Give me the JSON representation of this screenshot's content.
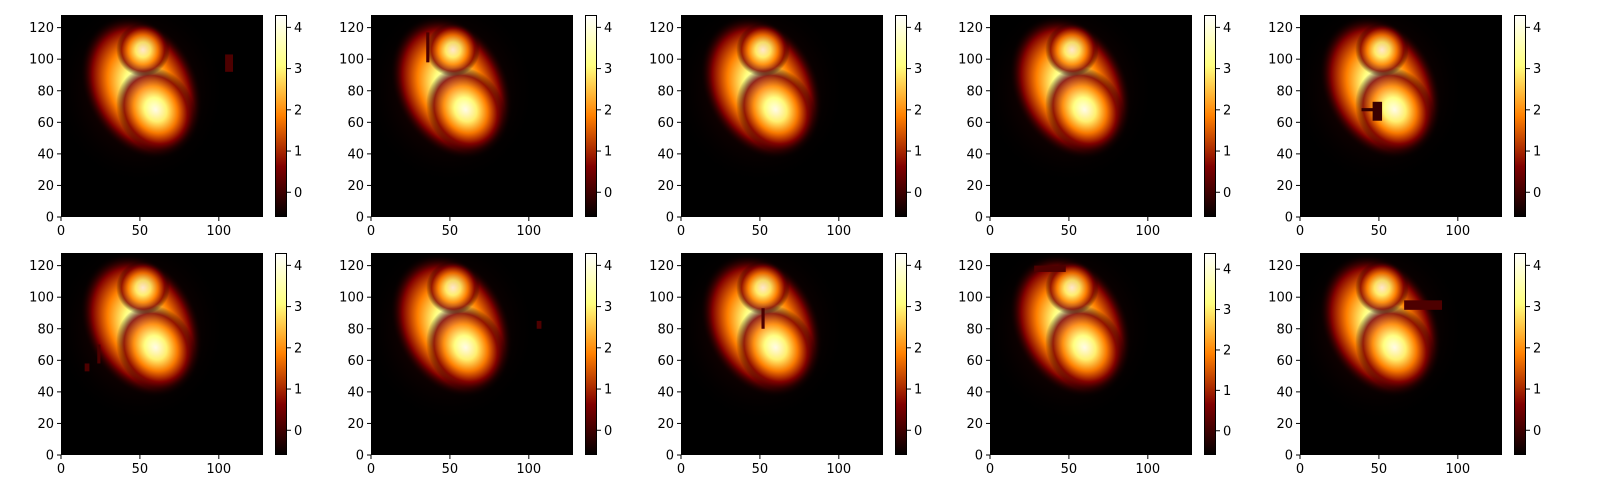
{
  "colormap": "afmhot",
  "colormap_colors": [
    "#000000",
    "#800000",
    "#ff8000",
    "#ffff80",
    "#ffffff"
  ],
  "chart_data": [
    {
      "type": "heatmap",
      "row": 1,
      "col": 1,
      "xlim": [
        0,
        128
      ],
      "ylim": [
        0,
        128
      ],
      "x_ticks": [
        "0",
        "50",
        "100"
      ],
      "y_ticks": [
        "0",
        "20",
        "40",
        "60",
        "80",
        "100",
        "120"
      ],
      "colorbar": {
        "range": [
          -0.6,
          4.3
        ],
        "ticks": [
          "0",
          "1",
          "2",
          "3",
          "4"
        ]
      },
      "masks": [
        {
          "x": [
            104,
            109
          ],
          "y": [
            92,
            103
          ],
          "value": 0.3
        }
      ]
    },
    {
      "type": "heatmap",
      "row": 1,
      "col": 2,
      "xlim": [
        0,
        128
      ],
      "ylim": [
        0,
        128
      ],
      "x_ticks": [
        "0",
        "50",
        "100"
      ],
      "y_ticks": [
        "0",
        "20",
        "40",
        "60",
        "80",
        "100",
        "120"
      ],
      "colorbar": {
        "range": [
          -0.6,
          4.3
        ],
        "ticks": [
          "0",
          "1",
          "2",
          "3",
          "4"
        ]
      },
      "masks": [
        {
          "x": [
            35,
            37
          ],
          "y": [
            98,
            117
          ],
          "value": 0.3
        }
      ]
    },
    {
      "type": "heatmap",
      "row": 1,
      "col": 3,
      "xlim": [
        0,
        128
      ],
      "ylim": [
        0,
        128
      ],
      "x_ticks": [
        "0",
        "50",
        "100"
      ],
      "y_ticks": [
        "0",
        "20",
        "40",
        "60",
        "80",
        "100",
        "120"
      ],
      "colorbar": {
        "range": [
          -0.6,
          4.3
        ],
        "ticks": [
          "0",
          "1",
          "2",
          "3",
          "4"
        ]
      },
      "masks": []
    },
    {
      "type": "heatmap",
      "row": 1,
      "col": 4,
      "xlim": [
        0,
        128
      ],
      "ylim": [
        0,
        128
      ],
      "x_ticks": [
        "0",
        "50",
        "100"
      ],
      "y_ticks": [
        "0",
        "20",
        "40",
        "60",
        "80",
        "100",
        "120"
      ],
      "colorbar": {
        "range": [
          -0.6,
          4.3
        ],
        "ticks": [
          "0",
          "1",
          "2",
          "3",
          "4"
        ]
      },
      "masks": []
    },
    {
      "type": "heatmap",
      "row": 1,
      "col": 5,
      "xlim": [
        0,
        128
      ],
      "ylim": [
        0,
        128
      ],
      "x_ticks": [
        "0",
        "50",
        "100"
      ],
      "y_ticks": [
        "0",
        "20",
        "40",
        "60",
        "80",
        "100",
        "120"
      ],
      "colorbar": {
        "range": [
          -0.6,
          4.3
        ],
        "ticks": [
          "0",
          "1",
          "2",
          "3",
          "4"
        ]
      },
      "masks": [
        {
          "x": [
            46,
            52
          ],
          "y": [
            61,
            73
          ],
          "value": 0.2
        },
        {
          "x": [
            39,
            50
          ],
          "y": [
            67,
            69
          ],
          "value": 0.2
        }
      ]
    },
    {
      "type": "heatmap",
      "row": 2,
      "col": 1,
      "xlim": [
        0,
        128
      ],
      "ylim": [
        0,
        128
      ],
      "x_ticks": [
        "0",
        "50",
        "100"
      ],
      "y_ticks": [
        "0",
        "20",
        "40",
        "60",
        "80",
        "100",
        "120"
      ],
      "colorbar": {
        "range": [
          -0.6,
          4.3
        ],
        "ticks": [
          "0",
          "1",
          "2",
          "3",
          "4"
        ]
      },
      "masks": [
        {
          "x": [
            15,
            18
          ],
          "y": [
            53,
            58
          ],
          "value": 0.3
        },
        {
          "x": [
            23,
            25
          ],
          "y": [
            58,
            70
          ],
          "value": 0.3
        }
      ]
    },
    {
      "type": "heatmap",
      "row": 2,
      "col": 2,
      "xlim": [
        0,
        128
      ],
      "ylim": [
        0,
        128
      ],
      "x_ticks": [
        "0",
        "50",
        "100"
      ],
      "y_ticks": [
        "0",
        "20",
        "40",
        "60",
        "80",
        "100",
        "120"
      ],
      "colorbar": {
        "range": [
          -0.6,
          4.3
        ],
        "ticks": [
          "0",
          "1",
          "2",
          "3",
          "4"
        ]
      },
      "masks": [
        {
          "x": [
            105,
            108
          ],
          "y": [
            80,
            85
          ],
          "value": 0.3
        }
      ]
    },
    {
      "type": "heatmap",
      "row": 2,
      "col": 3,
      "xlim": [
        0,
        128
      ],
      "ylim": [
        0,
        128
      ],
      "x_ticks": [
        "0",
        "50",
        "100"
      ],
      "y_ticks": [
        "0",
        "20",
        "40",
        "60",
        "80",
        "100",
        "120"
      ],
      "colorbar": {
        "range": [
          -0.6,
          4.3
        ],
        "ticks": [
          "0",
          "1",
          "2",
          "3",
          "4"
        ]
      },
      "masks": [
        {
          "x": [
            51,
            53
          ],
          "y": [
            80,
            93
          ],
          "value": 0.3
        }
      ]
    },
    {
      "type": "heatmap",
      "row": 2,
      "col": 4,
      "xlim": [
        0,
        128
      ],
      "ylim": [
        0,
        128
      ],
      "x_ticks": [
        "0",
        "50",
        "100"
      ],
      "y_ticks": [
        "0",
        "20",
        "40",
        "60",
        "80",
        "100",
        "120"
      ],
      "colorbar": {
        "range": [
          -0.6,
          4.4
        ],
        "ticks": [
          "0",
          "1",
          "2",
          "3",
          "4"
        ]
      },
      "masks": [
        {
          "x": [
            28,
            48
          ],
          "y": [
            116,
            120
          ],
          "value": 0.4
        }
      ]
    },
    {
      "type": "heatmap",
      "row": 2,
      "col": 5,
      "xlim": [
        0,
        128
      ],
      "ylim": [
        0,
        128
      ],
      "x_ticks": [
        "0",
        "50",
        "100"
      ],
      "y_ticks": [
        "0",
        "20",
        "40",
        "60",
        "80",
        "100",
        "120"
      ],
      "colorbar": {
        "range": [
          -0.6,
          4.3
        ],
        "ticks": [
          "0",
          "1",
          "2",
          "3",
          "4"
        ]
      },
      "masks": [
        {
          "x": [
            66,
            90
          ],
          "y": [
            92,
            98
          ],
          "value": 0.4
        }
      ]
    }
  ]
}
